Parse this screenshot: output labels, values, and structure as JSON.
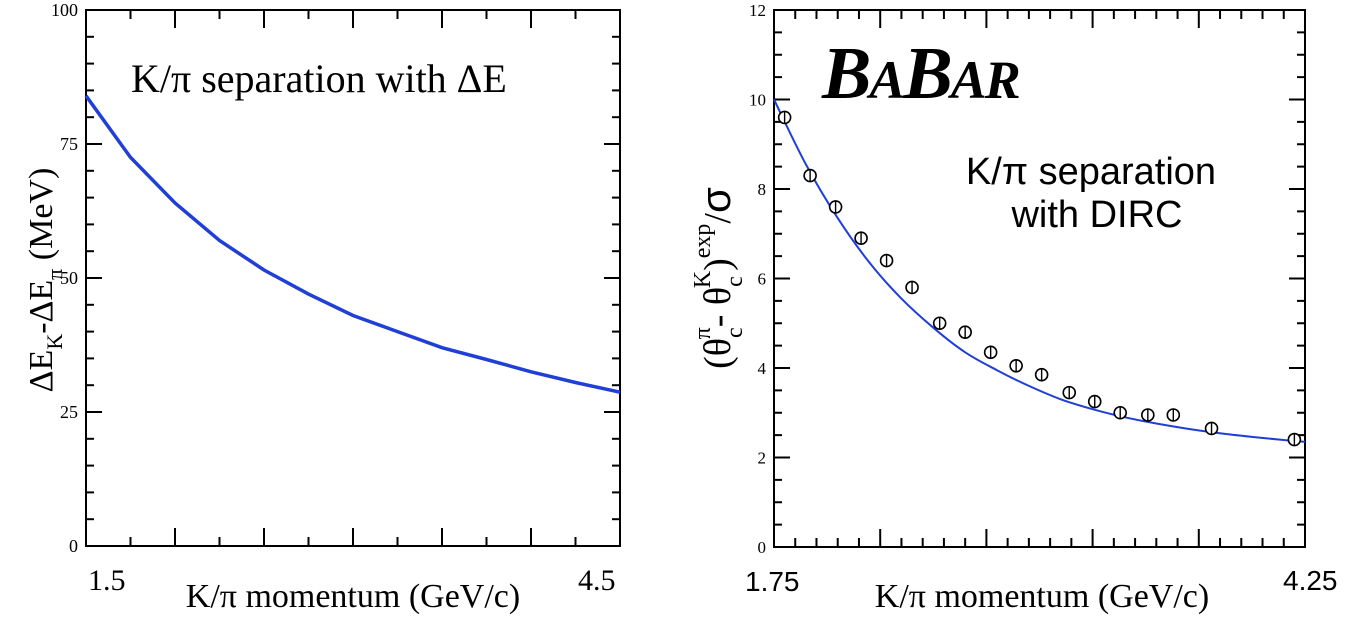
{
  "chart_data": [
    {
      "type": "line",
      "title": "",
      "annotation": "K/π separation with ΔE",
      "xlabel": "K/π momentum (GeV/c)",
      "ylabel": "ΔE_K-ΔE_π (MeV)",
      "xlim": [
        1.5,
        4.5
      ],
      "ylim": [
        0,
        100
      ],
      "x_tick_labels": [
        "1.5",
        "4.5"
      ],
      "y_tick_labels": [
        "0",
        "25",
        "50",
        "75",
        "100"
      ],
      "grid": false,
      "line_color": "#1f3fd6",
      "series": [
        {
          "x": [
            1.5,
            1.75,
            2.0,
            2.25,
            2.5,
            2.75,
            3.0,
            3.25,
            3.5,
            3.75,
            4.0,
            4.25,
            4.5
          ],
          "y": [
            84,
            72.5,
            64,
            57,
            51.5,
            47,
            43,
            40,
            37,
            34.8,
            32.5,
            30.5,
            28.7
          ]
        }
      ]
    },
    {
      "type": "scatter",
      "title": "",
      "logo": "BABAR",
      "annotation_lines": [
        "K/π separation",
        "with DIRC"
      ],
      "xlabel": "K/π momentum (GeV/c)",
      "ylabel": "(θc^π - θc^K)^exp/σ",
      "xlim": [
        1.75,
        4.25
      ],
      "ylim": [
        0,
        12
      ],
      "x_tick_labels": [
        "1.75",
        "4.25"
      ],
      "y_tick_labels": [
        "0",
        "2",
        "4",
        "6",
        "8",
        "10",
        "12"
      ],
      "grid": false,
      "fit_color": "#1f3fd6",
      "points": {
        "x": [
          1.8,
          1.92,
          2.04,
          2.16,
          2.28,
          2.4,
          2.53,
          2.65,
          2.77,
          2.89,
          3.01,
          3.14,
          3.26,
          3.38,
          3.51,
          3.63,
          3.81,
          4.2
        ],
        "y": [
          9.6,
          8.3,
          7.6,
          6.9,
          6.4,
          5.8,
          5.0,
          4.8,
          4.35,
          4.05,
          3.85,
          3.45,
          3.25,
          3.0,
          2.95,
          2.95,
          2.65,
          2.4
        ]
      },
      "fit": {
        "x": [
          1.75,
          1.9,
          2.05,
          2.2,
          2.35,
          2.5,
          2.65,
          2.8,
          2.95,
          3.1,
          3.25,
          3.4,
          3.55,
          3.7,
          3.85,
          4.0,
          4.15,
          4.25
        ],
        "y": [
          10.0,
          8.55,
          7.35,
          6.35,
          5.55,
          4.9,
          4.35,
          3.95,
          3.6,
          3.3,
          3.08,
          2.9,
          2.76,
          2.64,
          2.54,
          2.46,
          2.39,
          2.35
        ]
      }
    }
  ]
}
